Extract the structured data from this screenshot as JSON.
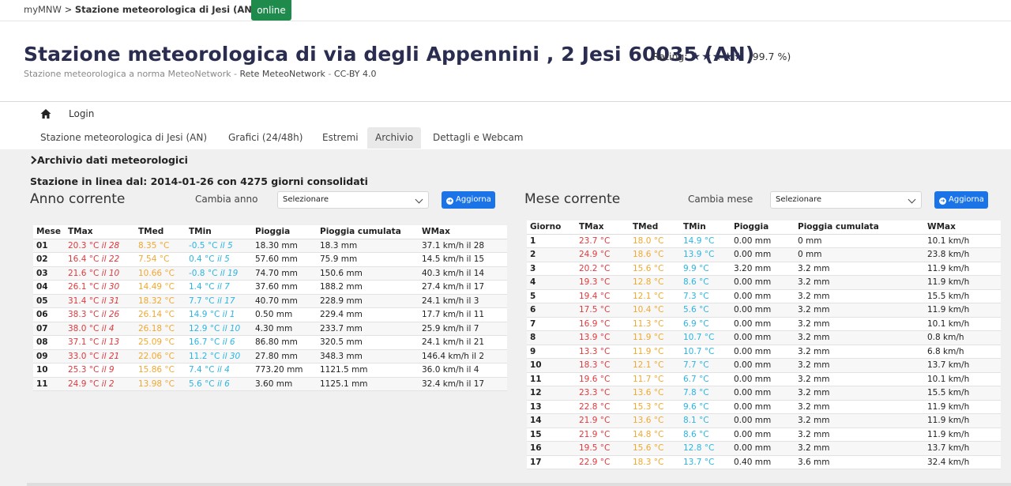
{
  "breadcrumb": {
    "home": "myMNW",
    "separator": ">",
    "current": "Stazione meteorologica di Jesi (AN)",
    "slash": "/",
    "status": "online"
  },
  "header": {
    "title": "Stazione meteorologica di via degli Appennini , 2 Jesi 60035 (AN)",
    "rating_label": "Rating:",
    "rating_stars": 5,
    "rating_pct": "(99.7 %)",
    "sub_text": "Stazione meteorologica a norma MeteoNetwork",
    "sub_sep1": " - ",
    "sub_network": "Rete MeteoNetwork",
    "sub_sep2": " - ",
    "sub_license": "CC-BY 4.0"
  },
  "nav": {
    "login": "Login",
    "tabs": [
      "Stazione meteorologica di Jesi (AN)",
      "Grafici (24/48h)",
      "Estremi",
      "Archivio",
      "Dettagli e Webcam"
    ],
    "active_tab": "Archivio"
  },
  "archive": {
    "toggle_label": "Archivio dati meteorologici",
    "online_since": "Stazione in linea dal: 2014-01-26 con 4275 giorni consolidati"
  },
  "year": {
    "title": "Anno corrente",
    "change_label": "Cambia anno",
    "select_value": "Selezionare",
    "button": "Aggiorna",
    "headers": [
      "Mese",
      "TMax",
      "TMed",
      "TMin",
      "Pioggia",
      "Pioggia cumulata",
      "WMax"
    ],
    "rows": [
      [
        "01",
        "20.3 °C",
        "il 28",
        "8.35 °C",
        "-0.5 °C",
        "il 5",
        "18.30 mm",
        "18.3 mm",
        "37.1 km/h il 28"
      ],
      [
        "02",
        "16.4 °C",
        "il 22",
        "7.54 °C",
        "0.4 °C",
        "il 5",
        "57.60 mm",
        "75.9 mm",
        "14.5 km/h il 15"
      ],
      [
        "03",
        "21.6 °C",
        "il 10",
        "10.66 °C",
        "-0.8 °C",
        "il 19",
        "74.70 mm",
        "150.6 mm",
        "40.3 km/h il 14"
      ],
      [
        "04",
        "26.1 °C",
        "il 30",
        "14.49 °C",
        "1.4 °C",
        "il 7",
        "37.60 mm",
        "188.2 mm",
        "27.4 km/h il 17"
      ],
      [
        "05",
        "31.4 °C",
        "il 31",
        "18.32 °C",
        "7.7 °C",
        "il 17",
        "40.70 mm",
        "228.9 mm",
        "24.1 km/h il 3"
      ],
      [
        "06",
        "38.3 °C",
        "il 26",
        "26.14 °C",
        "14.9 °C",
        "il 1",
        "0.50 mm",
        "229.4 mm",
        "17.7 km/h il 11"
      ],
      [
        "07",
        "38.0 °C",
        "il 4",
        "26.18 °C",
        "12.9 °C",
        "il 10",
        "4.30 mm",
        "233.7 mm",
        "25.9 km/h il 7"
      ],
      [
        "08",
        "37.1 °C",
        "il 13",
        "25.09 °C",
        "16.7 °C",
        "il 6",
        "86.80 mm",
        "320.5 mm",
        "24.1 km/h il 21"
      ],
      [
        "09",
        "33.0 °C",
        "il 21",
        "22.06 °C",
        "11.2 °C",
        "il 30",
        "27.80 mm",
        "348.3 mm",
        "146.4 km/h il 2"
      ],
      [
        "10",
        "25.3 °C",
        "il 9",
        "15.86 °C",
        "7.4 °C",
        "il 4",
        "773.20 mm",
        "1121.5 mm",
        "36.0 km/h il 4"
      ],
      [
        "11",
        "24.9 °C",
        "il 2",
        "13.98 °C",
        "5.6 °C",
        "il 6",
        "3.60 mm",
        "1125.1 mm",
        "32.4 km/h il 17"
      ]
    ]
  },
  "month": {
    "title": "Mese corrente",
    "change_label": "Cambia mese",
    "select_value": "Selezionare",
    "button": "Aggiorna",
    "headers": [
      "Giorno",
      "TMax",
      "TMed",
      "TMin",
      "Pioggia",
      "Pioggia cumulata",
      "WMax"
    ],
    "rows": [
      [
        "1",
        "23.7 °C",
        "18.0 °C",
        "14.9 °C",
        "0.00 mm",
        "0 mm",
        "10.1 km/h"
      ],
      [
        "2",
        "24.9 °C",
        "18.6 °C",
        "13.9 °C",
        "0.00 mm",
        "0 mm",
        "23.8 km/h"
      ],
      [
        "3",
        "20.2 °C",
        "15.6 °C",
        "9.9 °C",
        "3.20 mm",
        "3.2 mm",
        "11.9 km/h"
      ],
      [
        "4",
        "19.3 °C",
        "12.8 °C",
        "8.6 °C",
        "0.00 mm",
        "3.2 mm",
        "11.9 km/h"
      ],
      [
        "5",
        "19.4 °C",
        "12.1 °C",
        "7.3 °C",
        "0.00 mm",
        "3.2 mm",
        "15.5 km/h"
      ],
      [
        "6",
        "17.5 °C",
        "10.4 °C",
        "5.6 °C",
        "0.00 mm",
        "3.2 mm",
        "11.9 km/h"
      ],
      [
        "7",
        "16.9 °C",
        "11.3 °C",
        "6.9 °C",
        "0.00 mm",
        "3.2 mm",
        "10.1 km/h"
      ],
      [
        "8",
        "13.9 °C",
        "11.9 °C",
        "10.7 °C",
        "0.00 mm",
        "3.2 mm",
        "0.8 km/h"
      ],
      [
        "9",
        "13.3 °C",
        "11.9 °C",
        "10.7 °C",
        "0.00 mm",
        "3.2 mm",
        "6.8 km/h"
      ],
      [
        "10",
        "18.3 °C",
        "12.1 °C",
        "7.7 °C",
        "0.00 mm",
        "3.2 mm",
        "13.7 km/h"
      ],
      [
        "11",
        "19.6 °C",
        "11.7 °C",
        "6.7 °C",
        "0.00 mm",
        "3.2 mm",
        "10.1 km/h"
      ],
      [
        "12",
        "23.3 °C",
        "13.6 °C",
        "7.8 °C",
        "0.00 mm",
        "3.2 mm",
        "15.5 km/h"
      ],
      [
        "13",
        "22.8 °C",
        "15.3 °C",
        "9.6 °C",
        "0.00 mm",
        "3.2 mm",
        "11.9 km/h"
      ],
      [
        "14",
        "21.9 °C",
        "13.6 °C",
        "8.1 °C",
        "0.00 mm",
        "3.2 mm",
        "11.9 km/h"
      ],
      [
        "15",
        "21.9 °C",
        "14.8 °C",
        "8.6 °C",
        "0.00 mm",
        "3.2 mm",
        "11.9 km/h"
      ],
      [
        "16",
        "19.5 °C",
        "15.6 °C",
        "12.8 °C",
        "0.00 mm",
        "3.2 mm",
        "13.7 km/h"
      ],
      [
        "17",
        "22.9 °C",
        "18.3 °C",
        "13.7 °C",
        "0.40 mm",
        "3.6 mm",
        "32.4 km/h"
      ]
    ]
  },
  "colors": {
    "tmax": "#e0393e",
    "tmed": "#f1a82f",
    "tmin": "#2ab5e5",
    "title": "#2a2d4f",
    "online": "#1e8a4c",
    "button": "#1b73e8"
  },
  "icons": {
    "home": "home-icon",
    "star": "star-icon",
    "chevron_right": "chevron-right-icon",
    "chevron_down": "chevron-down-icon",
    "arrow_circle": "arrow-right-circle-icon"
  }
}
